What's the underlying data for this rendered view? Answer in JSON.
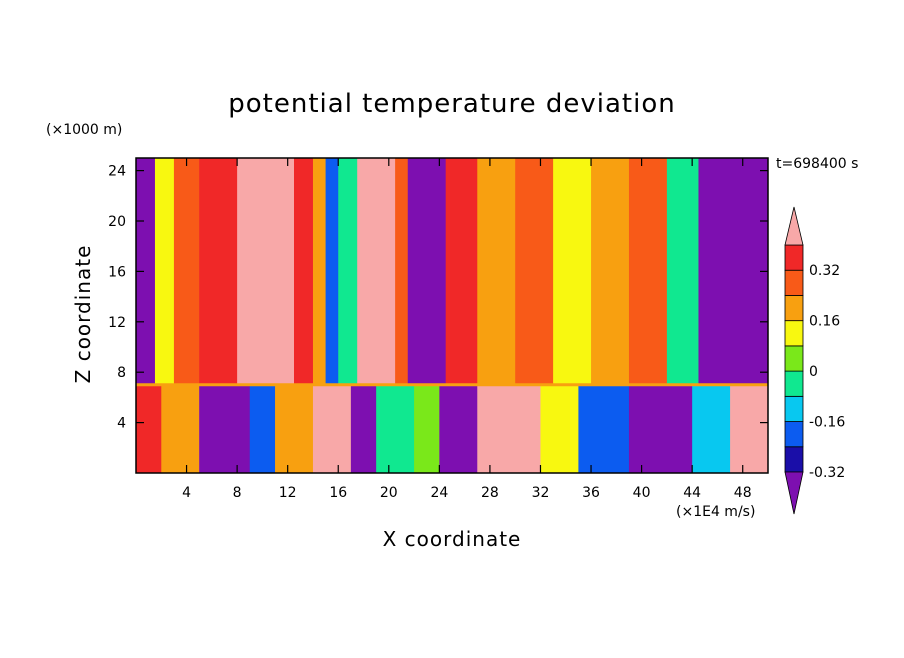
{
  "chart_data": {
    "type": "heatmap",
    "title": "potential temperature deviation",
    "xlabel": "X coordinate",
    "ylabel": "Z coordinate",
    "x_unit": "(×1E4 m/s)",
    "y_unit": "(×1000 m)",
    "time_text": "t=698400 s",
    "xlim": [
      0,
      50
    ],
    "ylim": [
      0,
      25
    ],
    "x_ticks": [
      4,
      8,
      12,
      16,
      20,
      24,
      28,
      32,
      36,
      40,
      44,
      48
    ],
    "y_ticks": [
      4,
      8,
      12,
      16,
      20,
      24
    ],
    "colorbar": {
      "levels": [
        -0.4,
        -0.32,
        -0.24,
        -0.16,
        -0.08,
        0,
        0.08,
        0.16,
        0.24,
        0.32,
        0.4
      ],
      "labels": [
        "0.32",
        "0.16",
        "0",
        "-0.16",
        "-0.32"
      ],
      "label_values": [
        0.32,
        0.16,
        0,
        -0.16,
        -0.32
      ],
      "colors": [
        "#7d0fb0",
        "#1a0ea8",
        "#0c5cf0",
        "#08c8f0",
        "#10e890",
        "#7ae81a",
        "#f8f810",
        "#f8a010",
        "#f85a18",
        "#f02828",
        "#f8a8a8"
      ]
    },
    "upper_layer_columns": [
      {
        "x": [
          0,
          1.5
        ],
        "value": -0.4
      },
      {
        "x": [
          1.5,
          3
        ],
        "value": 0.05
      },
      {
        "x": [
          3,
          5
        ],
        "value": 0.2
      },
      {
        "x": [
          5,
          8
        ],
        "value": 0.3
      },
      {
        "x": [
          8,
          12.5
        ],
        "value": 0.4
      },
      {
        "x": [
          12.5,
          14
        ],
        "value": 0.3
      },
      {
        "x": [
          14,
          15
        ],
        "value": 0.1
      },
      {
        "x": [
          15,
          16
        ],
        "value": -0.3
      },
      {
        "x": [
          16,
          17.5
        ],
        "value": -0.1
      },
      {
        "x": [
          17.5,
          20.5
        ],
        "value": 0.4
      },
      {
        "x": [
          20.5,
          21.5
        ],
        "value": 0.2
      },
      {
        "x": [
          21.5,
          24.5
        ],
        "value": -0.4
      },
      {
        "x": [
          24.5,
          27
        ],
        "value": 0.25
      },
      {
        "x": [
          27,
          30
        ],
        "value": 0.15
      },
      {
        "x": [
          30,
          33
        ],
        "value": 0.2
      },
      {
        "x": [
          33,
          36
        ],
        "value": 0.05
      },
      {
        "x": [
          36,
          39
        ],
        "value": 0.1
      },
      {
        "x": [
          39,
          42
        ],
        "value": 0.2
      },
      {
        "x": [
          42,
          44.5
        ],
        "value": -0.1
      },
      {
        "x": [
          44.5,
          50
        ],
        "value": -0.4
      }
    ],
    "lower_layer_columns": [
      {
        "x": [
          0,
          2
        ],
        "value": 0.25
      },
      {
        "x": [
          2,
          5
        ],
        "value": 0.1
      },
      {
        "x": [
          5,
          9
        ],
        "value": -0.4
      },
      {
        "x": [
          9,
          11
        ],
        "value": -0.3
      },
      {
        "x": [
          11,
          14
        ],
        "value": 0.1
      },
      {
        "x": [
          14,
          17
        ],
        "value": 0.4
      },
      {
        "x": [
          17,
          19
        ],
        "value": -0.4
      },
      {
        "x": [
          19,
          22
        ],
        "value": -0.15
      },
      {
        "x": [
          22,
          24
        ],
        "value": -0.05
      },
      {
        "x": [
          24,
          27
        ],
        "value": -0.4
      },
      {
        "x": [
          27,
          32
        ],
        "value": 0.4
      },
      {
        "x": [
          32,
          35
        ],
        "value": 0.05
      },
      {
        "x": [
          35,
          39
        ],
        "value": -0.3
      },
      {
        "x": [
          39,
          44
        ],
        "value": -0.4
      },
      {
        "x": [
          44,
          47
        ],
        "value": -0.2
      },
      {
        "x": [
          47,
          50
        ],
        "value": 0.35
      }
    ],
    "layer_boundary_z": 7
  }
}
